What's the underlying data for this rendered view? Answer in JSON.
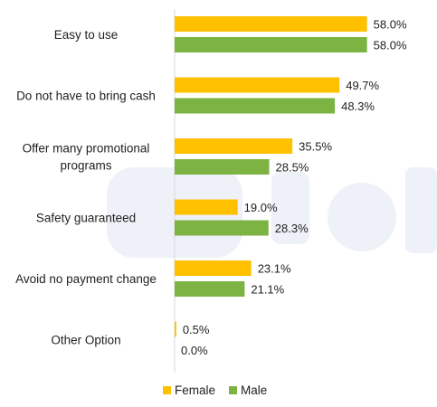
{
  "chart_data": {
    "type": "bar",
    "orientation": "horizontal",
    "categories": [
      [
        "Easy to use"
      ],
      [
        "Do not have to bring cash"
      ],
      [
        "Offer many promotional",
        "programs"
      ],
      [
        "Safety guaranteed"
      ],
      [
        "Avoid no payment change"
      ],
      [
        "Other Option"
      ]
    ],
    "series": [
      {
        "name": "Female",
        "color": "#FFC000",
        "values": [
          58.0,
          49.7,
          35.5,
          19.0,
          23.1,
          0.5
        ],
        "labels": [
          "58.0%",
          "49.7%",
          "35.5%",
          "19.0%",
          "23.1%",
          "0.5%"
        ]
      },
      {
        "name": "Male",
        "color": "#7CB342",
        "values": [
          58.0,
          48.3,
          28.5,
          28.3,
          21.1,
          0.0
        ],
        "labels": [
          "58.0%",
          "48.3%",
          "28.5%",
          "28.3%",
          "21.1%",
          "0.0%"
        ]
      }
    ],
    "xlim": [
      0,
      60
    ],
    "unit": "%",
    "legend_position": "bottom-center",
    "grid": false
  },
  "colors": {
    "axis": "#D9D9D9",
    "watermark": "#EEF1F8"
  }
}
